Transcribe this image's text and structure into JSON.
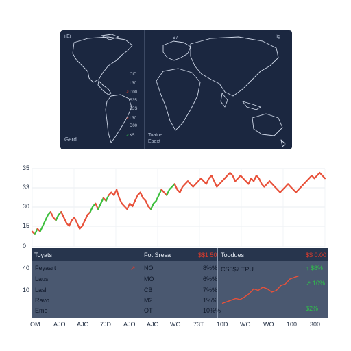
{
  "map": {
    "corner_tl": "iiEi",
    "corner_tr": "lig",
    "top_mid": "97",
    "bottom_left": "Gard",
    "bottom_mid_1": "Toatoe",
    "bottom_mid_2": "Eaext",
    "legend": [
      {
        "mark": "",
        "label": "CID",
        "mark_color": ""
      },
      {
        "mark": "",
        "label": "L30",
        "mark_color": ""
      },
      {
        "mark": "↗",
        "label": "D00",
        "mark_color": "#e23b2a"
      },
      {
        "mark": "",
        "label": "S35",
        "mark_color": ""
      },
      {
        "mark": "",
        "label": "S3S",
        "mark_color": ""
      },
      {
        "mark": "↗",
        "label": "L30",
        "mark_color": "#e23b2a"
      },
      {
        "mark": "",
        "label": "D00",
        "mark_color": ""
      },
      {
        "mark": "↗",
        "label": "K5",
        "mark_color": "#2fc14a"
      }
    ]
  },
  "chart_data": {
    "type": "line",
    "yticks": [
      "35",
      "33",
      "30",
      "15",
      "0"
    ],
    "ylim": [
      0,
      35
    ],
    "grid": true,
    "series": [
      {
        "values": [
          14,
          13,
          15,
          14,
          16,
          18,
          20,
          21,
          19,
          18,
          20,
          21,
          19,
          17,
          16,
          18,
          19,
          17,
          15,
          16,
          18,
          20,
          21,
          23,
          24,
          22,
          24,
          26,
          25,
          27,
          28,
          27,
          29,
          26,
          24,
          23,
          22,
          24,
          23,
          25,
          27,
          28,
          26,
          25,
          23,
          22,
          24,
          25,
          27,
          29,
          28,
          27,
          29,
          30,
          31,
          29,
          28,
          30,
          31,
          32,
          31,
          30,
          31,
          32,
          33,
          32,
          31,
          33,
          34,
          32,
          30,
          31,
          32,
          33,
          34,
          35,
          34,
          32,
          33,
          34,
          33,
          32,
          31,
          33,
          32,
          34,
          33,
          31,
          30,
          31,
          32,
          31,
          30,
          29,
          28,
          29,
          30,
          31,
          30,
          29,
          28,
          29,
          30,
          31,
          32,
          33,
          34,
          33,
          34,
          35,
          34,
          33
        ]
      }
    ],
    "up_color": "#3cbf3c",
    "down_color": "#e8513a"
  },
  "table": {
    "headers": {
      "col1": "Toyats",
      "col2": "Fot Sresa",
      "col2_value": "$$1 50",
      "col3": "Toodues",
      "col3_value": "$$ 0.00"
    },
    "rows": [
      {
        "left": "40",
        "name": "Feyaart",
        "mark": "↗",
        "code": "NO",
        "pct": "8%%"
      },
      {
        "left": "",
        "name": "Laus",
        "mark": "",
        "code": "MO",
        "pct": "6%%"
      },
      {
        "left": "10",
        "name": "Lasl",
        "mark": "",
        "code": "CB",
        "pct": "7%%"
      },
      {
        "left": "",
        "name": "Ravo",
        "mark": "",
        "code": "M2",
        "pct": "1%%"
      },
      {
        "left": "",
        "name": "Eme",
        "mark": "",
        "code": "OT",
        "pct": "10%%"
      }
    ],
    "spark_label": "CS5$7 TPU",
    "spark_right": [
      {
        "mark": "↑",
        "label": "$8%",
        "color": "#2fc14a"
      },
      {
        "mark": "↗",
        "label": "10%",
        "color": "#2fc14a"
      },
      {
        "mark": "",
        "label": "$2%",
        "color": "#2fc14a"
      }
    ],
    "spark_values": [
      2,
      2.5,
      3,
      3.5,
      3.2,
      4,
      5,
      6.5,
      6,
      7,
      6.5,
      5.5,
      6,
      7.5,
      8,
      9.5,
      10,
      10.5
    ],
    "spark_color": "#e8513a"
  },
  "xaxis": [
    "OM",
    "AJO",
    "AJO",
    "7JD",
    "AJO",
    "AJO",
    "WO",
    "73T",
    "10D",
    "WO",
    "WO",
    "100",
    "300"
  ]
}
